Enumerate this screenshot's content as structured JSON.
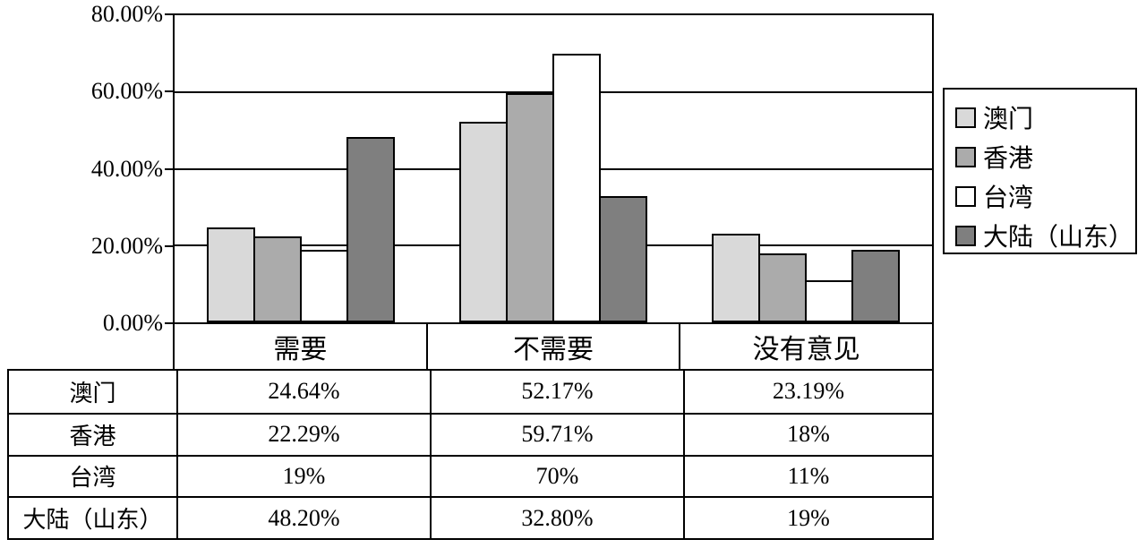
{
  "chart_data": {
    "type": "bar",
    "title": "",
    "categories": [
      "需要",
      "不需要",
      "没有意见"
    ],
    "series": [
      {
        "name": "澳门",
        "color": "#d9d9d9",
        "values": [
          24.64,
          52.17,
          23.19
        ],
        "labels": [
          "24.64%",
          "52.17%",
          "23.19%"
        ]
      },
      {
        "name": "香港",
        "color": "#ababab",
        "values": [
          22.29,
          59.71,
          18
        ],
        "labels": [
          "22.29%",
          "59.71%",
          "18%"
        ]
      },
      {
        "name": "台湾",
        "color": "#ffffff",
        "values": [
          19,
          70,
          11
        ],
        "labels": [
          "19%",
          "70%",
          "11%"
        ]
      },
      {
        "name": "大陆（山东）",
        "color": "#7f7f7f",
        "values": [
          48.2,
          32.8,
          19
        ],
        "labels": [
          "48.20%",
          "32.80%",
          "19%"
        ]
      }
    ],
    "y_axis": {
      "min": 0,
      "max": 80,
      "tick_interval": 20,
      "tick_values": [
        80,
        60,
        40,
        20,
        0
      ],
      "tick_labels": [
        "80.00%",
        "60.00%",
        "40.00%",
        "20.00%",
        "0.00%"
      ]
    },
    "legend_position": "right",
    "grid": true,
    "line_color": "#000000",
    "background_color": "#ffffff"
  }
}
